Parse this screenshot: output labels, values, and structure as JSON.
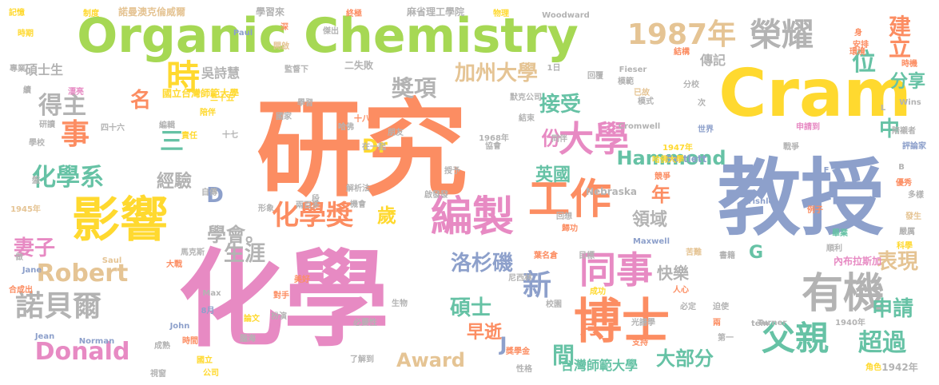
{
  "palette": {
    "orange": "#fc8d62",
    "blue": "#8da0cb",
    "pink": "#e78ac3",
    "green": "#a6d854",
    "yellow": "#ffd92f",
    "tan": "#e5c494",
    "gray": "#b3b3b3",
    "teal": "#66c2a5"
  },
  "words": [
    {
      "text": "研究",
      "color": "orange"
    },
    {
      "text": "化學",
      "color": "pink"
    },
    {
      "text": "教授",
      "color": "blue"
    },
    {
      "text": "Cram",
      "color": "yellow"
    },
    {
      "text": "Organic Chemistry",
      "color": "green"
    },
    {
      "text": "博士",
      "color": "orange"
    },
    {
      "text": "影響",
      "color": "yellow"
    },
    {
      "text": "有機",
      "color": "gray"
    },
    {
      "text": "工作",
      "color": "orange"
    },
    {
      "text": "編製",
      "color": "pink"
    },
    {
      "text": "同事",
      "color": "pink"
    },
    {
      "text": "父親",
      "color": "teal"
    },
    {
      "text": "時",
      "color": "yellow"
    },
    {
      "text": "榮耀",
      "color": "gray"
    },
    {
      "text": "1987年",
      "color": "tan"
    },
    {
      "text": "諾貝爾",
      "color": "gray"
    },
    {
      "text": "大學",
      "color": "pink"
    },
    {
      "text": "新",
      "color": "blue"
    },
    {
      "text": "事",
      "color": "orange"
    },
    {
      "text": "化學獎",
      "color": "orange"
    },
    {
      "text": "Donald",
      "color": "pink"
    },
    {
      "text": "Robert",
      "color": "tan"
    },
    {
      "text": "化學系",
      "color": "teal"
    },
    {
      "text": "得主",
      "color": "gray"
    },
    {
      "text": "建立",
      "color": "orange"
    },
    {
      "text": "表現",
      "color": "tan"
    },
    {
      "text": "三",
      "color": "teal"
    },
    {
      "text": "Hammond",
      "color": "teal"
    },
    {
      "text": "超過",
      "color": "teal"
    },
    {
      "text": "申請",
      "color": "teal"
    },
    {
      "text": "加州大學",
      "color": "tan"
    },
    {
      "text": "洛杉磯",
      "color": "blue"
    },
    {
      "text": "接受",
      "color": "teal"
    },
    {
      "text": "Award",
      "color": "tan"
    },
    {
      "text": "碩士",
      "color": "teal"
    },
    {
      "text": "位",
      "color": "teal"
    },
    {
      "text": "獎項",
      "color": "gray"
    },
    {
      "text": "分享",
      "color": "teal"
    },
    {
      "text": "大部分",
      "color": "teal"
    },
    {
      "text": "妻子",
      "color": "pink"
    },
    {
      "text": "Dr",
      "color": "yellow"
    },
    {
      "text": "生涯",
      "color": "gray"
    },
    {
      "text": "間",
      "color": "teal"
    },
    {
      "text": "早逝",
      "color": "orange"
    },
    {
      "text": "英國",
      "color": "teal"
    },
    {
      "text": "份",
      "color": "pink"
    },
    {
      "text": "學會。",
      "color": "gray"
    },
    {
      "text": "快樂",
      "color": "gray"
    },
    {
      "text": "中",
      "color": "teal"
    },
    {
      "text": "月",
      "color": "orange"
    },
    {
      "text": "領域",
      "color": "gray"
    },
    {
      "text": "經驗",
      "color": "gray"
    },
    {
      "text": "歲",
      "color": "yellow"
    },
    {
      "text": "年",
      "color": "orange"
    },
    {
      "text": "台灣師範大學",
      "color": "teal"
    },
    {
      "text": "名",
      "color": "orange"
    },
    {
      "text": "D",
      "color": "blue"
    },
    {
      "text": "G",
      "color": "teal"
    },
    {
      "text": "J",
      "color": "blue"
    },
    {
      "text": "吳詩慧",
      "color": "gray"
    },
    {
      "text": "碩士生",
      "color": "gray"
    },
    {
      "text": "二失敗",
      "color": "gray"
    },
    {
      "text": "諾曼澳克倫威爾",
      "color": "tan"
    },
    {
      "text": "麻省理工學院",
      "color": "gray"
    },
    {
      "text": "學習來",
      "color": "gray"
    },
    {
      "text": "國立台灣師範大學",
      "color": "yellow"
    },
    {
      "text": "內布拉斯加",
      "color": "pink"
    },
    {
      "text": "傳記",
      "color": "gray"
    },
    {
      "text": "Woodward",
      "color": "gray"
    },
    {
      "text": "Fieser",
      "color": "gray"
    },
    {
      "text": "Cromwell",
      "color": "gray"
    },
    {
      "text": "Nebraska",
      "color": "gray"
    },
    {
      "text": "Bartlett",
      "color": "blue"
    },
    {
      "text": "Maxwell",
      "color": "blue"
    },
    {
      "text": "Tishler",
      "color": "blue"
    },
    {
      "text": "Turner",
      "color": "gray"
    },
    {
      "text": "Norman",
      "color": "blue"
    },
    {
      "text": "John",
      "color": "blue"
    },
    {
      "text": "Saul",
      "color": "tan"
    },
    {
      "text": "Jane",
      "color": "blue"
    },
    {
      "text": "Jean",
      "color": "blue"
    },
    {
      "text": "Paul",
      "color": "blue"
    },
    {
      "text": "Max",
      "color": "gray"
    },
    {
      "text": "Wins",
      "color": "gray"
    },
    {
      "text": "tein",
      "color": "gray"
    },
    {
      "text": "1945年",
      "color": "tan"
    },
    {
      "text": "1947年",
      "color": "yellow"
    },
    {
      "text": "1968年",
      "color": "gray"
    },
    {
      "text": "1940年",
      "color": "gray"
    },
    {
      "text": "1942年",
      "color": "gray"
    },
    {
      "text": "8月",
      "color": "blue"
    },
    {
      "text": "1日",
      "color": "gray"
    },
    {
      "text": "記憶",
      "color": "yellow"
    },
    {
      "text": "時期",
      "color": "yellow"
    },
    {
      "text": "制度",
      "color": "yellow"
    },
    {
      "text": "物理",
      "color": "yellow"
    },
    {
      "text": "終極",
      "color": "orange"
    },
    {
      "text": "深",
      "color": "orange"
    },
    {
      "text": "傑出",
      "color": "gray"
    },
    {
      "text": "開啟",
      "color": "tan"
    },
    {
      "text": "監督下",
      "color": "gray"
    },
    {
      "text": "學習",
      "color": "gray"
    },
    {
      "text": "國家",
      "color": "gray"
    },
    {
      "text": "三十五",
      "color": "yellow"
    },
    {
      "text": "四十六",
      "color": "gray"
    },
    {
      "text": "十七",
      "color": "gray"
    },
    {
      "text": "十八",
      "color": "orange"
    },
    {
      "text": "哈佛",
      "color": "gray"
    },
    {
      "text": "朋友",
      "color": "gray"
    },
    {
      "text": "在一起",
      "color": "gray"
    },
    {
      "text": "協會",
      "color": "gray"
    },
    {
      "text": "默克公司",
      "color": "gray"
    },
    {
      "text": "結束",
      "color": "gray"
    },
    {
      "text": "同伴",
      "color": "gray"
    },
    {
      "text": "模範",
      "color": "gray"
    },
    {
      "text": "回覆",
      "color": "gray"
    },
    {
      "text": "分校",
      "color": "gray"
    },
    {
      "text": "結構",
      "color": "orange"
    },
    {
      "text": "已故",
      "color": "tan"
    },
    {
      "text": "模式",
      "color": "gray"
    },
    {
      "text": "次",
      "color": "gray"
    },
    {
      "text": "身",
      "color": "orange"
    },
    {
      "text": "環境",
      "color": "orange"
    },
    {
      "text": "時機",
      "color": "orange"
    },
    {
      "text": "安排",
      "color": "orange"
    },
    {
      "text": "L",
      "color": "gray"
    },
    {
      "text": "陪襯者",
      "color": "gray"
    },
    {
      "text": "世界",
      "color": "blue"
    },
    {
      "text": "申請到",
      "color": "pink"
    },
    {
      "text": "戰爭",
      "color": "gray"
    },
    {
      "text": "評論家",
      "color": "blue"
    },
    {
      "text": "F",
      "color": "blue"
    },
    {
      "text": "B",
      "color": "gray"
    },
    {
      "text": "優秀",
      "color": "orange"
    },
    {
      "text": "多樣",
      "color": "gray"
    },
    {
      "text": "例子",
      "color": "orange"
    },
    {
      "text": "發生",
      "color": "tan"
    },
    {
      "text": "畢業",
      "color": "teal"
    },
    {
      "text": "順利",
      "color": "gray"
    },
    {
      "text": "嚴厲",
      "color": "gray"
    },
    {
      "text": "科學",
      "color": "yellow"
    },
    {
      "text": "書籍",
      "color": "gray"
    },
    {
      "text": "苦難",
      "color": "tan"
    },
    {
      "text": "哈佛大學",
      "color": "yellow"
    },
    {
      "text": "競爭",
      "color": "orange"
    },
    {
      "text": "人心",
      "color": "orange"
    },
    {
      "text": "必定",
      "color": "gray"
    },
    {
      "text": "迫使",
      "color": "gray"
    },
    {
      "text": "兩",
      "color": "orange"
    },
    {
      "text": "第一",
      "color": "gray"
    },
    {
      "text": "角色",
      "color": "yellow"
    },
    {
      "text": "光譜學",
      "color": "gray"
    },
    {
      "text": "支持",
      "color": "orange"
    },
    {
      "text": "性格",
      "color": "gray"
    },
    {
      "text": "獎學金",
      "color": "orange"
    },
    {
      "text": "成功",
      "color": "yellow"
    },
    {
      "text": "葉名倉",
      "color": "orange"
    },
    {
      "text": "目標",
      "color": "gray"
    },
    {
      "text": "校園",
      "color": "gray"
    },
    {
      "text": "生物",
      "color": "gray"
    },
    {
      "text": "必要性",
      "color": "gray"
    },
    {
      "text": "了解到",
      "color": "gray"
    },
    {
      "text": "尼西林",
      "color": "gray"
    },
    {
      "text": "回想",
      "color": "gray"
    },
    {
      "text": "歸功",
      "color": "orange"
    },
    {
      "text": "啟發發",
      "color": "gray"
    },
    {
      "text": "授予",
      "color": "gray"
    },
    {
      "text": "段",
      "color": "gray"
    },
    {
      "text": "機會",
      "color": "gray"
    },
    {
      "text": "解析法",
      "color": "gray"
    },
    {
      "text": "兩百多",
      "color": "gray"
    },
    {
      "text": "形象",
      "color": "gray"
    },
    {
      "text": "自傳",
      "color": "gray"
    },
    {
      "text": "責任",
      "color": "yellow"
    },
    {
      "text": "陪伴",
      "color": "yellow"
    },
    {
      "text": "編輯",
      "color": "gray"
    },
    {
      "text": "學校",
      "color": "gray"
    },
    {
      "text": "研讀",
      "color": "gray"
    },
    {
      "text": "續",
      "color": "gray"
    },
    {
      "text": "專業",
      "color": "gray"
    },
    {
      "text": "漂亮",
      "color": "pink"
    },
    {
      "text": "盤",
      "color": "gray"
    },
    {
      "text": "做",
      "color": "gray"
    },
    {
      "text": "合成出",
      "color": "orange"
    },
    {
      "text": "馬克斯",
      "color": "gray"
    },
    {
      "text": "大戰",
      "color": "orange"
    },
    {
      "text": "美好",
      "color": "orange"
    },
    {
      "text": "對手",
      "color": "orange"
    },
    {
      "text": "時間",
      "color": "orange"
    },
    {
      "text": "論文",
      "color": "yellow"
    },
    {
      "text": "扮演",
      "color": "gray"
    },
    {
      "text": "成熟",
      "color": "gray"
    },
    {
      "text": "國立",
      "color": "yellow"
    },
    {
      "text": "公司",
      "color": "yellow"
    },
    {
      "text": "視窗",
      "color": "gray"
    },
    {
      "text": "腦海",
      "color": "gray"
    },
    {
      "text": "爆發",
      "color": "orange"
    },
    {
      "text": "上班",
      "color": "orange"
    }
  ]
}
